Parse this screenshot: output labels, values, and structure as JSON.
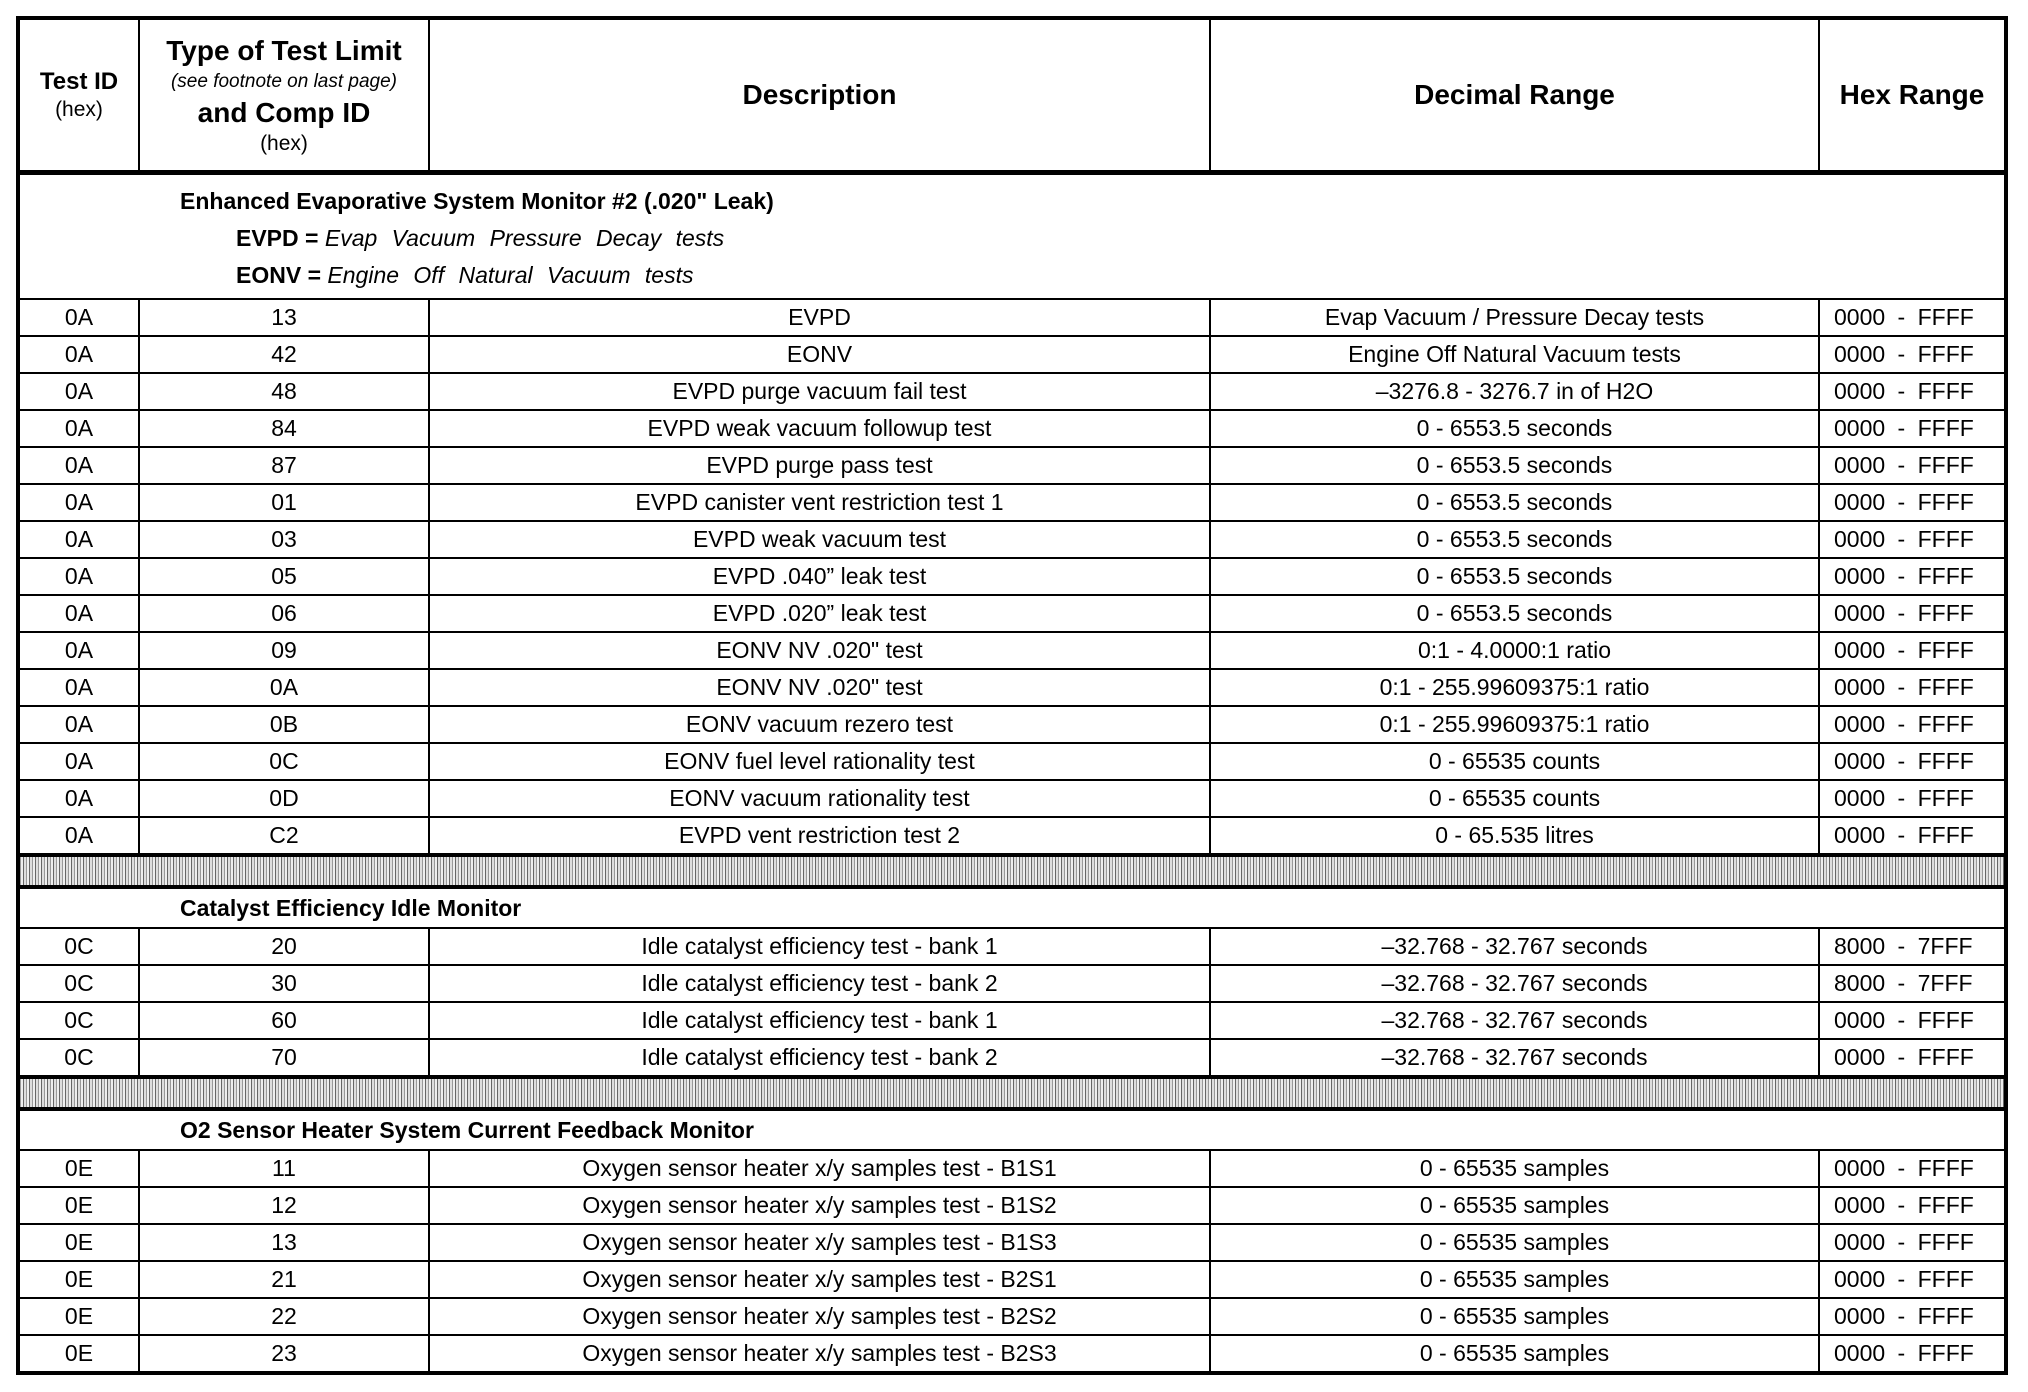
{
  "header": {
    "test_id": "Test ID",
    "test_id_sub": "(hex)",
    "type_line1": "Type of Test Limit",
    "type_note": "(see footnote on last page)",
    "type_line2": "and  Comp ID",
    "type_sub": "(hex)",
    "description": "Description",
    "decimal_range": "Decimal Range",
    "hex_range": "Hex Range"
  },
  "sections": [
    {
      "title": "Enhanced Evaporative System Monitor #2 (.020\" Leak)",
      "definitions": [
        {
          "abbr": "EVPD",
          "eq": "=",
          "meaning": "Evap Vacuum Pressure Decay tests"
        },
        {
          "abbr": "EONV",
          "eq": "=",
          "meaning": "Engine Off Natural Vacuum tests"
        }
      ],
      "rows": [
        [
          "0A",
          "13",
          "EVPD",
          "Evap Vacuum / Pressure Decay tests",
          "0000 - FFFF"
        ],
        [
          "0A",
          "42",
          "EONV",
          "Engine Off Natural Vacuum tests",
          "0000 - FFFF"
        ],
        [
          "0A",
          "48",
          "EVPD purge vacuum fail test",
          "–3276.8 - 3276.7 in of H2O",
          "0000 - FFFF"
        ],
        [
          "0A",
          "84",
          "EVPD weak vacuum followup test",
          "0 - 6553.5 seconds",
          "0000 - FFFF"
        ],
        [
          "0A",
          "87",
          "EVPD purge pass test",
          "0 - 6553.5 seconds",
          "0000 - FFFF"
        ],
        [
          "0A",
          "01",
          "EVPD canister vent restriction test 1",
          "0 - 6553.5 seconds",
          "0000 - FFFF"
        ],
        [
          "0A",
          "03",
          "EVPD weak vacuum test",
          "0 - 6553.5 seconds",
          "0000 - FFFF"
        ],
        [
          "0A",
          "05",
          "EVPD .040” leak test",
          "0 - 6553.5 seconds",
          "0000 - FFFF"
        ],
        [
          "0A",
          "06",
          "EVPD .020” leak test",
          "0 - 6553.5 seconds",
          "0000 - FFFF"
        ],
        [
          "0A",
          "09",
          "EONV NV .020\" test",
          "0:1 - 4.0000:1 ratio",
          "0000 - FFFF"
        ],
        [
          "0A",
          "0A",
          "EONV NV .020\" test",
          "0:1 - 255.99609375:1 ratio",
          "0000 - FFFF"
        ],
        [
          "0A",
          "0B",
          "EONV vacuum rezero test",
          "0:1 - 255.99609375:1 ratio",
          "0000 - FFFF"
        ],
        [
          "0A",
          "0C",
          "EONV fuel level rationality test",
          "0 - 65535 counts",
          "0000 - FFFF"
        ],
        [
          "0A",
          "0D",
          "EONV vacuum rationality test",
          "0 - 65535 counts",
          "0000 - FFFF"
        ],
        [
          "0A",
          "C2",
          "EVPD vent restriction test 2",
          "0 - 65.535 litres",
          "0000 - FFFF"
        ]
      ]
    },
    {
      "title": "Catalyst Efficiency Idle Monitor",
      "rows": [
        [
          "0C",
          "20",
          "Idle catalyst efficiency test - bank 1",
          "–32.768 - 32.767 seconds",
          "8000 - 7FFF"
        ],
        [
          "0C",
          "30",
          "Idle catalyst efficiency test - bank 2",
          "–32.768 - 32.767 seconds",
          "8000 - 7FFF"
        ],
        [
          "0C",
          "60",
          "Idle catalyst efficiency test - bank 1",
          "–32.768 - 32.767 seconds",
          "0000 - FFFF"
        ],
        [
          "0C",
          "70",
          "Idle catalyst efficiency test - bank 2",
          "–32.768 - 32.767 seconds",
          "0000 - FFFF"
        ]
      ]
    },
    {
      "title": "O2 Sensor Heater System Current Feedback Monitor",
      "rows": [
        [
          "0E",
          "11",
          "Oxygen sensor heater x/y samples test - B1S1",
          "0 - 65535 samples",
          "0000 - FFFF"
        ],
        [
          "0E",
          "12",
          "Oxygen sensor heater x/y samples test - B1S2",
          "0 - 65535 samples",
          "0000 - FFFF"
        ],
        [
          "0E",
          "13",
          "Oxygen sensor heater x/y samples test - B1S3",
          "0 - 65535 samples",
          "0000 - FFFF"
        ],
        [
          "0E",
          "21",
          "Oxygen sensor heater x/y samples test - B2S1",
          "0 - 65535 samples",
          "0000 - FFFF"
        ],
        [
          "0E",
          "22",
          "Oxygen sensor heater x/y samples test - B2S2",
          "0 - 65535 samples",
          "0000 - FFFF"
        ],
        [
          "0E",
          "23",
          "Oxygen sensor heater x/y samples test - B2S3",
          "0 - 65535 samples",
          "0000 - FFFF"
        ]
      ]
    }
  ]
}
